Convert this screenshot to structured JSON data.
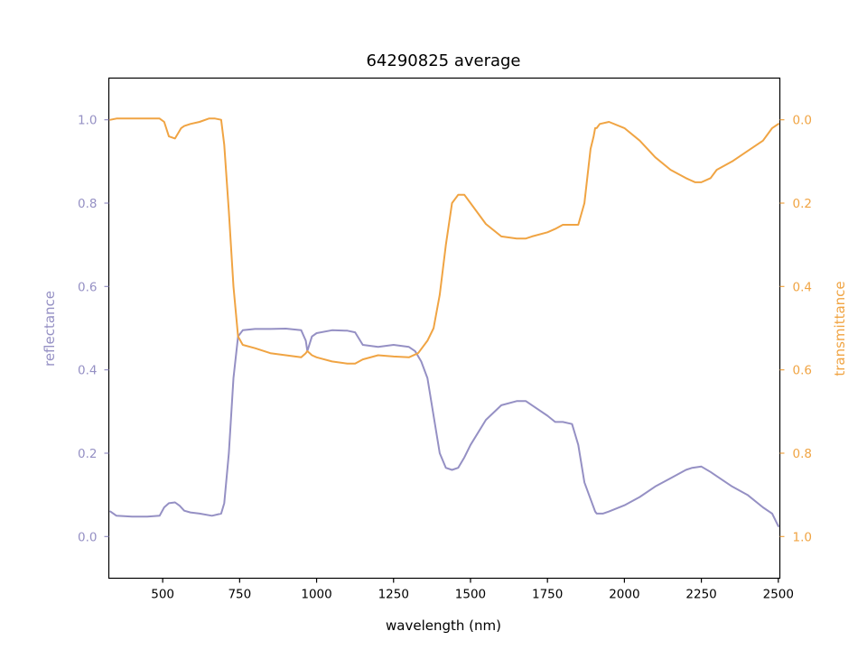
{
  "chart_data": {
    "type": "line",
    "title": "64290825 average",
    "xlabel": "wavelength (nm)",
    "ylabel_left": "reflectance",
    "ylabel_right": "transmittance",
    "xlim": [
      325,
      2505
    ],
    "ylim_left": [
      -0.1,
      1.1
    ],
    "ylim_right": [
      1.1,
      -0.1
    ],
    "right_axis_inverted": true,
    "grid": false,
    "x_ticks": [
      500,
      750,
      1000,
      1250,
      1500,
      1750,
      2000,
      2250,
      2500
    ],
    "y_ticks_left": [
      0.0,
      0.2,
      0.4,
      0.6,
      0.8,
      1.0
    ],
    "y_ticks_right": [
      0.0,
      0.2,
      0.4,
      0.6,
      0.8,
      1.0
    ],
    "colors": {
      "reflectance": "#9590c4",
      "transmittance": "#f0a443",
      "axis": "#000000"
    },
    "series": [
      {
        "name": "reflectance",
        "axis": "left",
        "x": [
          330,
          350,
          400,
          450,
          490,
          505,
          520,
          540,
          555,
          570,
          590,
          620,
          660,
          690,
          700,
          715,
          730,
          745,
          760,
          800,
          850,
          900,
          950,
          965,
          970,
          985,
          1000,
          1050,
          1100,
          1125,
          1150,
          1200,
          1250,
          1300,
          1320,
          1340,
          1360,
          1380,
          1400,
          1420,
          1440,
          1460,
          1480,
          1500,
          1550,
          1600,
          1650,
          1680,
          1700,
          1750,
          1775,
          1800,
          1830,
          1850,
          1870,
          1890,
          1900,
          1905,
          1910,
          1930,
          1950,
          2000,
          2050,
          2100,
          2150,
          2200,
          2220,
          2250,
          2280,
          2300,
          2350,
          2400,
          2450,
          2480,
          2500
        ],
        "values": [
          0.06,
          0.05,
          0.048,
          0.048,
          0.05,
          0.07,
          0.08,
          0.082,
          0.074,
          0.062,
          0.058,
          0.055,
          0.05,
          0.055,
          0.08,
          0.2,
          0.38,
          0.48,
          0.495,
          0.498,
          0.498,
          0.499,
          0.495,
          0.47,
          0.445,
          0.48,
          0.488,
          0.495,
          0.494,
          0.49,
          0.46,
          0.455,
          0.46,
          0.455,
          0.445,
          0.42,
          0.38,
          0.29,
          0.2,
          0.165,
          0.16,
          0.165,
          0.19,
          0.22,
          0.28,
          0.315,
          0.325,
          0.325,
          0.315,
          0.29,
          0.275,
          0.275,
          0.27,
          0.22,
          0.13,
          0.09,
          0.07,
          0.06,
          0.055,
          0.055,
          0.06,
          0.075,
          0.095,
          0.12,
          0.14,
          0.16,
          0.165,
          0.168,
          0.155,
          0.145,
          0.12,
          0.1,
          0.07,
          0.055,
          0.025
        ]
      },
      {
        "name": "transmittance",
        "axis": "right",
        "x": [
          330,
          350,
          400,
          450,
          490,
          505,
          520,
          540,
          560,
          570,
          590,
          620,
          650,
          670,
          690,
          700,
          715,
          730,
          745,
          760,
          800,
          850,
          900,
          950,
          965,
          970,
          985,
          1000,
          1050,
          1100,
          1125,
          1150,
          1200,
          1250,
          1300,
          1330,
          1360,
          1380,
          1400,
          1420,
          1440,
          1460,
          1480,
          1500,
          1550,
          1600,
          1650,
          1680,
          1700,
          1750,
          1775,
          1800,
          1850,
          1870,
          1890,
          1900,
          1905,
          1910,
          1920,
          1950,
          2000,
          2050,
          2100,
          2150,
          2200,
          2230,
          2250,
          2280,
          2300,
          2350,
          2400,
          2450,
          2480,
          2500
        ],
        "values": [
          0.0,
          -0.003,
          -0.003,
          -0.003,
          -0.003,
          0.005,
          0.04,
          0.045,
          0.02,
          0.015,
          0.01,
          0.005,
          -0.003,
          -0.003,
          0.0,
          0.06,
          0.22,
          0.4,
          0.52,
          0.54,
          0.548,
          0.56,
          0.565,
          0.57,
          0.56,
          0.555,
          0.565,
          0.57,
          0.58,
          0.585,
          0.585,
          0.575,
          0.565,
          0.568,
          0.57,
          0.56,
          0.53,
          0.5,
          0.42,
          0.3,
          0.2,
          0.18,
          0.18,
          0.2,
          0.25,
          0.28,
          0.285,
          0.285,
          0.28,
          0.27,
          0.262,
          0.252,
          0.252,
          0.2,
          0.07,
          0.04,
          0.02,
          0.02,
          0.01,
          0.005,
          0.02,
          0.05,
          0.09,
          0.12,
          0.14,
          0.15,
          0.15,
          0.14,
          0.12,
          0.1,
          0.075,
          0.05,
          0.02,
          0.01
        ]
      }
    ]
  }
}
